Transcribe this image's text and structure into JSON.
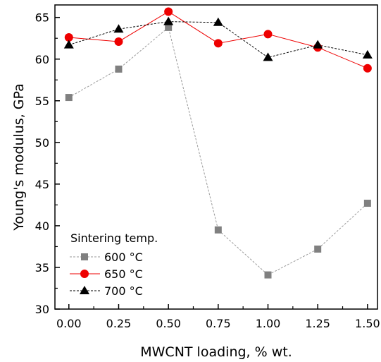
{
  "chart_data": {
    "type": "line",
    "xlabel": "MWCNT loading, % wt.",
    "ylabel": "Young's modulus, GPa",
    "xlim": [
      -0.07,
      1.55
    ],
    "ylim": [
      30,
      66.5
    ],
    "x_ticks": [
      0.0,
      0.25,
      0.5,
      0.75,
      1.0,
      1.25,
      1.5
    ],
    "x_tick_labels": [
      "0.00",
      "0.25",
      "0.50",
      "0.75",
      "1.00",
      "1.25",
      "1.50"
    ],
    "y_ticks": [
      30,
      35,
      40,
      45,
      50,
      55,
      60,
      65
    ],
    "y_tick_labels": [
      "30",
      "35",
      "40",
      "45",
      "50",
      "55",
      "60",
      "65"
    ],
    "x": [
      0.0,
      0.25,
      0.5,
      0.75,
      1.0,
      1.25,
      1.5
    ],
    "legend_title": "Sintering temp.",
    "legend_position": "bottom-left",
    "grid": false,
    "series": [
      {
        "name": "600 °C",
        "values": [
          55.4,
          58.8,
          63.8,
          39.5,
          34.1,
          37.2,
          42.7
        ],
        "marker": "square",
        "color": "#808080",
        "line_style": "dashed",
        "line_color": "#9a9a9a"
      },
      {
        "name": "650 °C",
        "values": [
          62.6,
          62.1,
          65.7,
          61.9,
          63.0,
          61.4,
          58.9
        ],
        "marker": "circle",
        "color": "#ee0000",
        "line_style": "solid",
        "line_color": "#ee0000"
      },
      {
        "name": "700 °C",
        "values": [
          61.7,
          63.6,
          64.5,
          64.4,
          60.2,
          61.7,
          60.5
        ],
        "marker": "triangle",
        "color": "#000000",
        "line_style": "dashed",
        "line_color": "#000000"
      }
    ]
  }
}
